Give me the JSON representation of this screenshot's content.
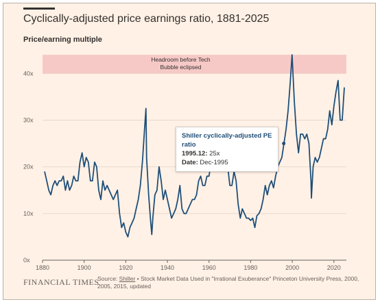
{
  "title": "Cyclically-adjusted price earnings ratio, 1881-2025",
  "subtitle": "Price/earning multiple",
  "footer": {
    "brand": "FINANCIAL TIMES",
    "source_prefix": "Source: ",
    "source_link": "Shiller",
    "source_rest": " • Stock Market Data Used in \"Irrational Exuberance\" Princeton University Press, 2000, 2005, 2015, updated"
  },
  "tooltip": {
    "series": "Shiller cyclically-adjusted PE ratio",
    "value_label": "1995.12:",
    "value": "25x",
    "date_label": "Date:",
    "date": "Dec-1995"
  },
  "colors": {
    "background": "#fff1e5",
    "line": "#1f4e79",
    "band": "#f4c2c2",
    "text": "#33302e"
  },
  "chart_data": {
    "type": "line",
    "title": "Cyclically-adjusted price earnings ratio, 1881-2025",
    "ylabel": "Price/earning multiple",
    "xlim": [
      1880,
      2026
    ],
    "ylim": [
      0,
      44
    ],
    "xticks": [
      1880,
      1900,
      1920,
      1940,
      1960,
      1980,
      2000,
      2020
    ],
    "yticks": [
      0,
      10,
      20,
      30,
      40
    ],
    "xtick_labels": [
      "1880",
      "1900",
      "1920",
      "1940",
      "1960",
      "1980",
      "2000",
      "2020"
    ],
    "ytick_labels": [
      "0x",
      "10x",
      "20x",
      "30x",
      "40x"
    ],
    "grid": true,
    "band": {
      "y_range": [
        40,
        44
      ],
      "label_line1": "Headroom before Tech",
      "label_line2": "Bubble eclipsed"
    },
    "series": [
      {
        "x": [
          1881,
          1882,
          1883,
          1884,
          1885,
          1886,
          1887,
          1888,
          1889,
          1890,
          1891,
          1892,
          1893,
          1894,
          1895,
          1896,
          1897,
          1898,
          1899,
          1900,
          1901,
          1902,
          1903,
          1904,
          1905,
          1906,
          1907,
          1908,
          1909,
          1910,
          1911,
          1912,
          1913,
          1914,
          1915,
          1916,
          1917,
          1918,
          1919,
          1920,
          1921,
          1922,
          1923,
          1924,
          1925,
          1926,
          1927,
          1928,
          1929,
          1929.7,
          1930,
          1931,
          1932,
          1932.5,
          1933,
          1934,
          1935,
          1936,
          1937,
          1938,
          1939,
          1940,
          1941,
          1942,
          1943,
          1944,
          1945,
          1946,
          1947,
          1948,
          1949,
          1950,
          1951,
          1952,
          1953,
          1954,
          1955,
          1956,
          1957,
          1958,
          1959,
          1960,
          1961,
          1962,
          1963,
          1964,
          1965,
          1966,
          1967,
          1968,
          1969,
          1970,
          1971,
          1972,
          1973,
          1974,
          1975,
          1976,
          1977,
          1978,
          1979,
          1980,
          1981,
          1982,
          1983,
          1984,
          1985,
          1986,
          1987,
          1988,
          1989,
          1990,
          1991,
          1992,
          1993,
          1994,
          1995,
          1996,
          1997,
          1998,
          1999,
          1999.9,
          2001,
          2002,
          2003,
          2004,
          2005,
          2006,
          2007,
          2008,
          2009,
          2009.2,
          2010,
          2011,
          2012,
          2013,
          2014,
          2015,
          2016,
          2017,
          2018,
          2019,
          2020,
          2021,
          2022,
          2023,
          2024,
          2025
        ],
        "values": [
          19,
          17,
          15,
          14,
          16,
          17,
          16,
          17,
          17,
          18,
          15,
          17,
          15,
          16,
          18,
          17,
          17,
          21,
          23,
          20,
          22,
          21,
          17,
          17,
          21,
          20,
          15,
          13,
          17,
          15,
          16,
          15,
          14,
          13,
          14,
          15,
          10,
          7,
          8,
          6,
          5,
          7,
          8,
          9,
          11,
          13,
          16,
          21,
          28,
          32.5,
          22,
          14,
          8,
          5.5,
          9,
          14,
          15,
          20,
          17,
          13,
          15,
          13,
          11,
          9,
          10,
          11,
          13,
          16,
          11,
          10,
          10,
          11,
          12,
          13,
          13,
          14,
          17,
          18,
          16,
          16,
          18,
          18,
          21,
          20,
          21,
          22,
          23,
          21,
          20,
          22,
          20,
          16,
          16,
          19,
          17,
          12,
          9,
          11,
          10,
          9,
          9,
          8.5,
          9,
          7,
          9.5,
          10,
          11,
          13,
          16,
          14,
          16,
          17,
          15.5,
          18,
          20,
          21,
          22,
          25,
          28,
          32,
          38,
          44,
          34,
          27,
          23,
          27,
          27,
          26,
          27,
          25,
          17,
          13.3,
          20,
          22,
          21,
          22,
          24,
          26,
          26,
          28,
          32,
          29,
          33,
          36,
          38.5,
          30,
          30,
          37
        ]
      }
    ]
  }
}
